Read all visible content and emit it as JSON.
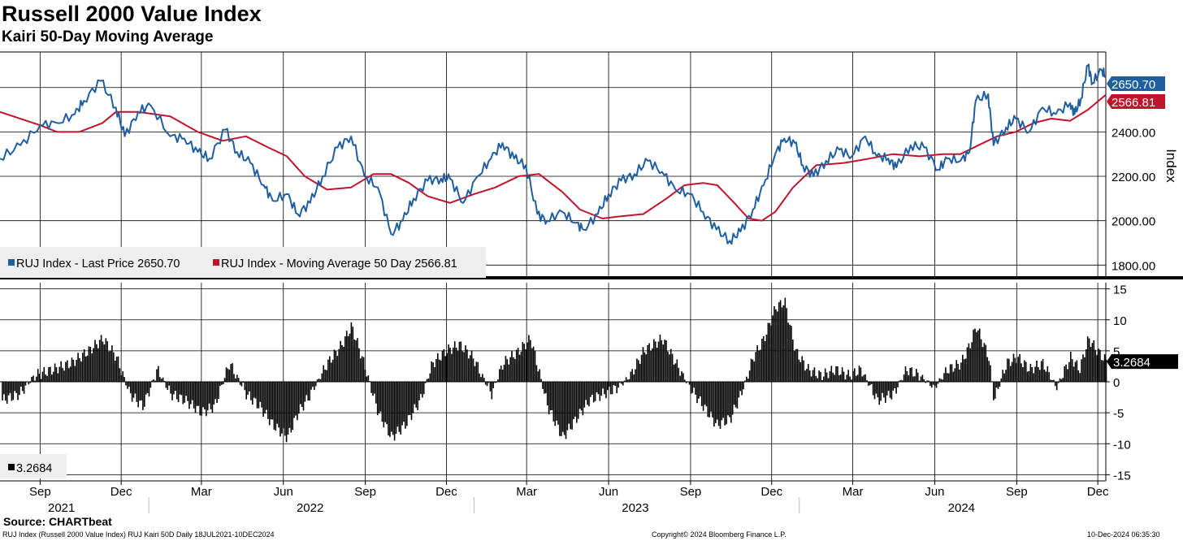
{
  "title": "Russell 2000 Value Index",
  "subtitle": "Kairi 50-Day Moving Average",
  "source": "Source: CHARTbeat",
  "footer": {
    "left": "RUJ Index (Russell 2000 Value Index) RUJ Kairi 50D  Daily 18JUL2021-10DEC2024",
    "center": "Copyright© 2024 Bloomberg Finance L.P.",
    "right": "10-Dec-2024 06:35:30"
  },
  "colors": {
    "price": "#1f5fa0",
    "ma": "#c0142c",
    "kairi": "#000000",
    "grid": "#000000"
  },
  "chart_data": [
    {
      "type": "line",
      "panel": "top",
      "ylabel": "Index",
      "ylim": [
        1750,
        2760
      ],
      "yticks": [
        "1800.00",
        "2000.00",
        "2200.00",
        "2400.00"
      ],
      "ytick_values": [
        1800,
        2000,
        2200,
        2400
      ],
      "x_start": "2021-07-18",
      "x_end": "2024-12-10",
      "legend": {
        "placement": "bottom-left",
        "items": [
          "RUJ Index - Last Price 2650.70",
          "RUJ Index - Moving Average 50 Day 2566.81"
        ]
      },
      "last_labels": {
        "price": "2650.70",
        "ma": "2566.81"
      },
      "series": [
        {
          "name": "RUJ Index - Last Price",
          "x": [
            "2021-07-18",
            "2021-08-10",
            "2021-09-01",
            "2021-09-20",
            "2021-10-10",
            "2021-10-20",
            "2021-11-08",
            "2021-11-25",
            "2021-12-05",
            "2021-12-20",
            "2022-01-03",
            "2022-01-25",
            "2022-02-10",
            "2022-02-25",
            "2022-03-10",
            "2022-03-28",
            "2022-04-10",
            "2022-04-25",
            "2022-05-10",
            "2022-05-20",
            "2022-06-05",
            "2022-06-17",
            "2022-07-01",
            "2022-07-15",
            "2022-08-01",
            "2022-08-16",
            "2022-08-31",
            "2022-09-15",
            "2022-09-30",
            "2022-10-13",
            "2022-10-25",
            "2022-11-10",
            "2022-11-25",
            "2022-12-05",
            "2022-12-20",
            "2023-01-05",
            "2023-01-20",
            "2023-02-02",
            "2023-02-15",
            "2023-02-28",
            "2023-03-13",
            "2023-03-24",
            "2023-04-10",
            "2023-04-25",
            "2023-05-04",
            "2023-05-20",
            "2023-06-01",
            "2023-06-15",
            "2023-06-30",
            "2023-07-15",
            "2023-07-31",
            "2023-08-15",
            "2023-08-31",
            "2023-09-15",
            "2023-09-30",
            "2023-10-15",
            "2023-10-27",
            "2023-11-10",
            "2023-11-22",
            "2023-12-05",
            "2023-12-15",
            "2023-12-27",
            "2024-01-05",
            "2024-01-17",
            "2024-01-31",
            "2024-02-15",
            "2024-02-29",
            "2024-03-15",
            "2024-03-28",
            "2024-04-10",
            "2024-04-19",
            "2024-05-05",
            "2024-05-20",
            "2024-06-05",
            "2024-06-15",
            "2024-06-30",
            "2024-07-10",
            "2024-07-17",
            "2024-07-31",
            "2024-08-06",
            "2024-08-20",
            "2024-08-31",
            "2024-09-15",
            "2024-09-30",
            "2024-10-15",
            "2024-10-31",
            "2024-11-05",
            "2024-11-12",
            "2024-11-20",
            "2024-11-25",
            "2024-12-05",
            "2024-12-10"
          ],
          "values": [
            2280,
            2340,
            2430,
            2440,
            2480,
            2540,
            2630,
            2510,
            2380,
            2490,
            2520,
            2380,
            2370,
            2310,
            2280,
            2410,
            2310,
            2260,
            2160,
            2090,
            2120,
            2030,
            2080,
            2200,
            2330,
            2380,
            2200,
            2150,
            1940,
            2000,
            2100,
            2180,
            2190,
            2190,
            2080,
            2200,
            2280,
            2350,
            2280,
            2250,
            2030,
            2000,
            2040,
            1990,
            1960,
            2030,
            2120,
            2180,
            2210,
            2270,
            2220,
            2140,
            2120,
            2040,
            1960,
            1910,
            1950,
            2050,
            2160,
            2300,
            2370,
            2350,
            2250,
            2200,
            2270,
            2320,
            2290,
            2380,
            2290,
            2280,
            2240,
            2340,
            2330,
            2230,
            2280,
            2270,
            2310,
            2540,
            2570,
            2340,
            2420,
            2460,
            2400,
            2510,
            2480,
            2530,
            2480,
            2550,
            2700,
            2620,
            2680,
            2650
          ]
        },
        {
          "name": "RUJ Index - Moving Average 50 Day",
          "x": [
            "2021-07-18",
            "2021-09-01",
            "2021-09-20",
            "2021-10-15",
            "2021-11-10",
            "2021-11-25",
            "2021-12-20",
            "2022-01-25",
            "2022-02-25",
            "2022-03-25",
            "2022-04-20",
            "2022-05-15",
            "2022-06-05",
            "2022-06-25",
            "2022-07-20",
            "2022-08-16",
            "2022-09-10",
            "2022-09-30",
            "2022-10-20",
            "2022-11-10",
            "2022-12-05",
            "2023-01-01",
            "2023-01-25",
            "2023-02-20",
            "2023-03-15",
            "2023-04-10",
            "2023-04-30",
            "2023-05-25",
            "2023-06-15",
            "2023-07-10",
            "2023-08-05",
            "2023-08-25",
            "2023-09-15",
            "2023-10-01",
            "2023-10-20",
            "2023-11-05",
            "2023-11-20",
            "2023-12-05",
            "2023-12-25",
            "2024-01-20",
            "2024-02-20",
            "2024-03-20",
            "2024-04-15",
            "2024-05-15",
            "2024-06-10",
            "2024-06-30",
            "2024-07-20",
            "2024-08-10",
            "2024-08-31",
            "2024-09-20",
            "2024-10-10",
            "2024-10-31",
            "2024-11-20",
            "2024-12-10"
          ],
          "values": [
            2490,
            2430,
            2400,
            2400,
            2440,
            2490,
            2490,
            2470,
            2400,
            2360,
            2380,
            2330,
            2290,
            2200,
            2140,
            2150,
            2210,
            2210,
            2170,
            2110,
            2080,
            2120,
            2150,
            2200,
            2210,
            2130,
            2050,
            2010,
            2020,
            2030,
            2100,
            2160,
            2170,
            2160,
            2080,
            2010,
            2000,
            2040,
            2150,
            2250,
            2260,
            2280,
            2300,
            2290,
            2300,
            2300,
            2340,
            2380,
            2400,
            2440,
            2460,
            2450,
            2500,
            2567
          ]
        }
      ]
    },
    {
      "type": "bar",
      "panel": "bottom",
      "name": "RUJ Kairi 50D",
      "ylim": [
        -16,
        16
      ],
      "yticks": [
        "15",
        "10",
        "5",
        "0",
        "-5",
        "-10",
        "-15"
      ],
      "ytick_values": [
        15,
        10,
        5,
        0,
        -5,
        -10,
        -15
      ],
      "legend": {
        "placement": "bottom-left",
        "items": [
          "3.2684"
        ]
      },
      "last_label": "3.2684",
      "x_start": "2021-07-18",
      "x_end": "2024-12-10",
      "x": [
        "2021-07-20",
        "2021-08-08",
        "2021-08-25",
        "2021-09-15",
        "2021-10-05",
        "2021-10-25",
        "2021-11-10",
        "2021-11-25",
        "2021-12-10",
        "2021-12-25",
        "2022-01-10",
        "2022-01-25",
        "2022-02-10",
        "2022-03-01",
        "2022-03-15",
        "2022-04-01",
        "2022-04-20",
        "2022-05-05",
        "2022-05-20",
        "2022-06-05",
        "2022-06-17",
        "2022-07-01",
        "2022-07-20",
        "2022-08-05",
        "2022-08-16",
        "2022-09-01",
        "2022-09-15",
        "2022-09-30",
        "2022-10-15",
        "2022-11-01",
        "2022-11-15",
        "2022-11-30",
        "2022-12-15",
        "2022-12-30",
        "2023-01-20",
        "2023-02-02",
        "2023-02-20",
        "2023-03-05",
        "2023-03-24",
        "2023-04-10",
        "2023-04-25",
        "2023-05-10",
        "2023-05-25",
        "2023-06-10",
        "2023-06-25",
        "2023-07-10",
        "2023-07-31",
        "2023-08-15",
        "2023-08-31",
        "2023-09-15",
        "2023-09-30",
        "2023-10-15",
        "2023-10-27",
        "2023-11-10",
        "2023-11-22",
        "2023-12-05",
        "2023-12-15",
        "2023-12-27",
        "2024-01-10",
        "2024-01-25",
        "2024-02-10",
        "2024-02-25",
        "2024-03-10",
        "2024-03-28",
        "2024-04-15",
        "2024-04-30",
        "2024-05-15",
        "2024-05-31",
        "2024-06-15",
        "2024-06-30",
        "2024-07-10",
        "2024-07-17",
        "2024-07-31",
        "2024-08-06",
        "2024-08-20",
        "2024-09-01",
        "2024-09-15",
        "2024-09-30",
        "2024-10-15",
        "2024-10-31",
        "2024-11-10",
        "2024-11-20",
        "2024-11-30",
        "2024-12-10"
      ],
      "values": [
        -3,
        -2,
        1,
        2,
        3,
        5,
        7,
        4,
        -2,
        -4,
        2,
        -2,
        -3,
        -5,
        -4,
        3,
        -2,
        -4,
        -7,
        -9,
        -5,
        -2,
        3,
        6,
        9,
        2,
        -5,
        -9,
        -7,
        -3,
        3,
        5,
        6,
        4,
        -2,
        3,
        5,
        7,
        -4,
        -9,
        -6,
        -3,
        -2,
        -1,
        1,
        5,
        7,
        3,
        -1,
        -4,
        -7,
        -6,
        -2,
        4,
        7,
        12,
        13,
        5,
        2,
        1,
        2,
        1,
        2,
        -3,
        -2,
        2,
        1,
        -1,
        2,
        3,
        6,
        9,
        4,
        -3,
        3,
        4,
        2,
        3,
        -1,
        4,
        2,
        7,
        5,
        3.27
      ]
    }
  ],
  "x_axis": {
    "months": [
      "Sep",
      "Dec",
      "Mar",
      "Jun",
      "Sep",
      "Dec",
      "Mar",
      "Jun",
      "Sep",
      "Dec",
      "Mar",
      "Jun",
      "Sep",
      "Dec"
    ],
    "years": [
      "2021",
      "2022",
      "2023",
      "2024"
    ]
  }
}
